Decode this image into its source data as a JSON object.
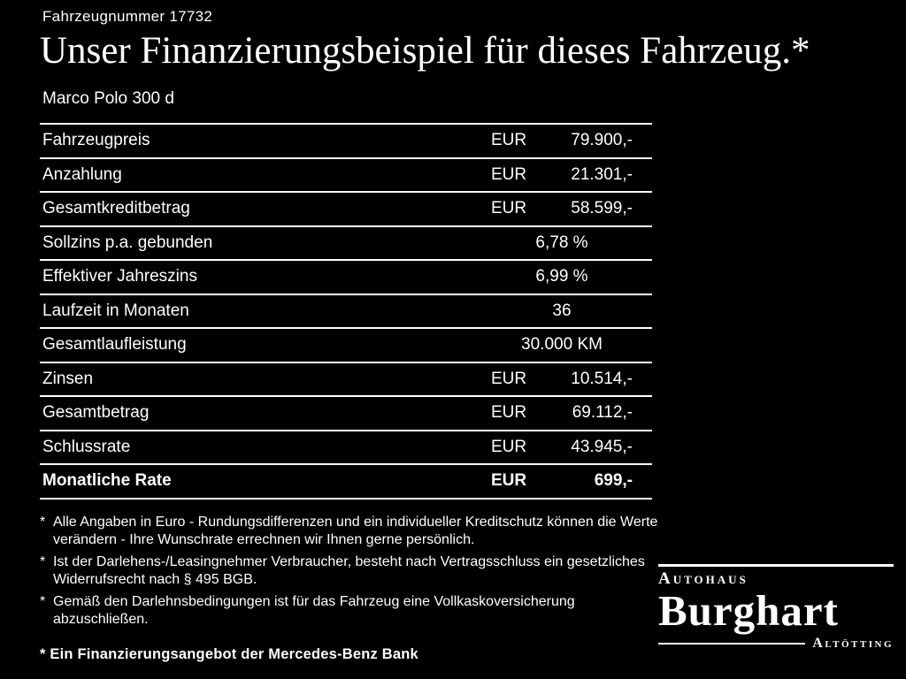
{
  "header": {
    "vehicle_number": "Fahrzeugnummer 17732",
    "title": "Unser Finanzierungsbeispiel für dieses Fahrzeug.*",
    "model": "Marco Polo 300 d"
  },
  "finance_table": {
    "rows": [
      {
        "label": "Fahrzeugpreis",
        "currency": "EUR",
        "value": "79.900,-",
        "bold": false
      },
      {
        "label": "Anzahlung",
        "currency": "EUR",
        "value": "21.301,-",
        "bold": false
      },
      {
        "label": "Gesamtkreditbetrag",
        "currency": "EUR",
        "value": "58.599,-",
        "bold": false
      },
      {
        "label": "Sollzins p.a. gebunden",
        "currency": "",
        "value": "6,78 %",
        "bold": false
      },
      {
        "label": "Effektiver Jahreszins",
        "currency": "",
        "value": "6,99 %",
        "bold": false
      },
      {
        "label": "Laufzeit in Monaten",
        "currency": "",
        "value": "36",
        "bold": false
      },
      {
        "label": "Gesamtlaufleistung",
        "currency": "",
        "value": "30.000 KM",
        "bold": false
      },
      {
        "label": "Zinsen",
        "currency": "EUR",
        "value": "10.514,-",
        "bold": false
      },
      {
        "label": "Gesamtbetrag",
        "currency": "EUR",
        "value": "69.112,-",
        "bold": false
      },
      {
        "label": "Schlussrate",
        "currency": "EUR",
        "value": "43.945,-",
        "bold": false
      },
      {
        "label": "Monatliche Rate",
        "currency": "EUR",
        "value": "699,-",
        "bold": true
      }
    ]
  },
  "footnotes": [
    {
      "marker": "*",
      "text": "Alle Angaben in Euro - Rundungsdifferenzen und ein individueller Kreditschutz können die Werte verändern - Ihre Wunschrate errechnen wir Ihnen gerne persönlich."
    },
    {
      "marker": "*",
      "text": "Ist der Darlehens-/Leasingnehmer Verbraucher, besteht nach Vertragsschluss ein gesetzliches Widerrufsrecht nach § 495 BGB."
    },
    {
      "marker": "*",
      "text": "Gemäß den Darlehnsbedingungen ist für das Fahrzeug eine Vollkaskoversicherung abzuschließen."
    }
  ],
  "bank_note": "* Ein Finanzierungsangebot der Mercedes-Benz Bank",
  "dealer_logo": {
    "top": "Autohaus",
    "name": "Burghart",
    "city": "Altötting"
  },
  "colors": {
    "background": "#000000",
    "text": "#ffffff"
  }
}
